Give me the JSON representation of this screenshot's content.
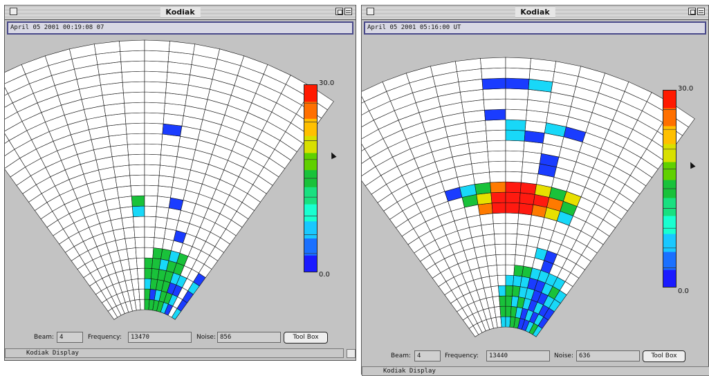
{
  "windows": [
    {
      "title": "Kodiak",
      "timestamp": "April 05 2001  00:19:08 07",
      "colorbar": {
        "max_label": "30.0",
        "min_label": "0.0",
        "min": 0,
        "max": 30
      },
      "fields": {
        "beam_label": "Beam:",
        "beam_value": "4",
        "frequency_label": "Frequency:",
        "frequency_value": "13470",
        "noise_label": "Noise:",
        "noise_value": "856"
      },
      "tool_box_label": "Tool Box",
      "status_text": "Kodiak  Display",
      "cells": [
        [
          17,
          0,
          "b"
        ],
        [
          17,
          1,
          "c"
        ],
        [
          17,
          2,
          "g"
        ],
        [
          16,
          0,
          "g"
        ],
        [
          16,
          1,
          "c"
        ],
        [
          16,
          2,
          "b"
        ],
        [
          16,
          3,
          "c"
        ],
        [
          16,
          4,
          "g"
        ],
        [
          15,
          0,
          "c"
        ],
        [
          15,
          1,
          "b"
        ],
        [
          15,
          2,
          "b"
        ],
        [
          15,
          3,
          "c"
        ],
        [
          15,
          4,
          "b"
        ],
        [
          13,
          0,
          "b"
        ],
        [
          13,
          1,
          "c"
        ],
        [
          13,
          2,
          "b"
        ],
        [
          13,
          3,
          "c"
        ],
        [
          12,
          0,
          "c"
        ],
        [
          12,
          1,
          "g"
        ],
        [
          12,
          2,
          "b"
        ],
        [
          12,
          3,
          "c"
        ],
        [
          12,
          4,
          "g"
        ],
        [
          12,
          5,
          "g"
        ],
        [
          11,
          0,
          "g"
        ],
        [
          11,
          1,
          "g"
        ],
        [
          11,
          2,
          "g"
        ],
        [
          11,
          3,
          "g"
        ],
        [
          11,
          4,
          "g"
        ],
        [
          11,
          5,
          "c"
        ],
        [
          10,
          0,
          "g"
        ],
        [
          10,
          1,
          "c"
        ],
        [
          10,
          2,
          "g"
        ],
        [
          10,
          3,
          "g"
        ],
        [
          10,
          4,
          "c"
        ],
        [
          10,
          5,
          "g"
        ],
        [
          9,
          0,
          "g"
        ],
        [
          9,
          1,
          "b"
        ],
        [
          9,
          2,
          "g"
        ],
        [
          9,
          3,
          "g"
        ],
        [
          9,
          4,
          "g"
        ],
        [
          9,
          5,
          "g"
        ],
        [
          8,
          0,
          "g"
        ],
        [
          8,
          1,
          "g"
        ],
        [
          8,
          2,
          "c"
        ],
        [
          8,
          3,
          "g"
        ],
        [
          8,
          4,
          "g"
        ],
        [
          11,
          7,
          "b"
        ],
        [
          10,
          10,
          "b"
        ],
        [
          7,
          9,
          "c"
        ],
        [
          7,
          10,
          "g"
        ],
        [
          9,
          17,
          "b"
        ]
      ]
    },
    {
      "title": "Kodiak",
      "timestamp": "April 05 2001  05:16:00 UT",
      "colorbar": {
        "max_label": "30.0",
        "min_label": "0.0",
        "min": 0,
        "max": 30
      },
      "fields": {
        "beam_label": "Beam:",
        "beam_value": "4",
        "frequency_label": "Frequency:",
        "frequency_value": "13440",
        "noise_label": "Noise:",
        "noise_value": "636"
      },
      "tool_box_label": "Tool Box",
      "status_text": "Kodiak  Display",
      "cells": [
        [
          15,
          0,
          "c"
        ],
        [
          15,
          1,
          "b"
        ],
        [
          15,
          2,
          "b"
        ],
        [
          15,
          3,
          "c"
        ],
        [
          15,
          4,
          "c"
        ],
        [
          14,
          0,
          "g"
        ],
        [
          14,
          1,
          "c"
        ],
        [
          14,
          2,
          "b"
        ],
        [
          14,
          3,
          "c"
        ],
        [
          14,
          4,
          "g"
        ],
        [
          14,
          5,
          "c"
        ],
        [
          13,
          0,
          "c"
        ],
        [
          13,
          1,
          "b"
        ],
        [
          13,
          2,
          "c"
        ],
        [
          13,
          3,
          "b"
        ],
        [
          13,
          4,
          "c"
        ],
        [
          13,
          5,
          "c"
        ],
        [
          12,
          0,
          "b"
        ],
        [
          12,
          1,
          "c"
        ],
        [
          12,
          2,
          "b"
        ],
        [
          12,
          3,
          "b"
        ],
        [
          12,
          4,
          "b"
        ],
        [
          12,
          5,
          "c"
        ],
        [
          12,
          6,
          "b"
        ],
        [
          11,
          0,
          "b"
        ],
        [
          11,
          1,
          "b"
        ],
        [
          11,
          2,
          "c"
        ],
        [
          11,
          3,
          "c"
        ],
        [
          11,
          4,
          "b"
        ],
        [
          11,
          5,
          "c"
        ],
        [
          10,
          0,
          "g"
        ],
        [
          10,
          1,
          "c"
        ],
        [
          10,
          2,
          "g"
        ],
        [
          10,
          3,
          "c"
        ],
        [
          10,
          4,
          "c"
        ],
        [
          10,
          5,
          "g"
        ],
        [
          9,
          0,
          "g"
        ],
        [
          9,
          1,
          "g"
        ],
        [
          9,
          2,
          "c"
        ],
        [
          9,
          3,
          "g"
        ],
        [
          9,
          4,
          "c"
        ],
        [
          9,
          5,
          "g"
        ],
        [
          8,
          0,
          "c"
        ],
        [
          8,
          1,
          "g"
        ],
        [
          8,
          2,
          "g"
        ],
        [
          8,
          3,
          "g"
        ],
        [
          8,
          4,
          "c"
        ],
        [
          7,
          0,
          "c"
        ],
        [
          7,
          1,
          "g"
        ],
        [
          7,
          2,
          "g"
        ],
        [
          7,
          3,
          "c"
        ],
        [
          12,
          7,
          "b"
        ],
        [
          11,
          7,
          "c"
        ],
        [
          12,
          11,
          "c"
        ],
        [
          11,
          11,
          "y"
        ],
        [
          10,
          11,
          "o"
        ],
        [
          9,
          11,
          "r"
        ],
        [
          8,
          11,
          "r"
        ],
        [
          7,
          11,
          "r"
        ],
        [
          6,
          11,
          "o"
        ],
        [
          12,
          12,
          "g"
        ],
        [
          11,
          12,
          "o"
        ],
        [
          10,
          12,
          "r"
        ],
        [
          9,
          12,
          "r"
        ],
        [
          8,
          12,
          "r"
        ],
        [
          7,
          12,
          "r"
        ],
        [
          6,
          12,
          "y"
        ],
        [
          5,
          12,
          "g"
        ],
        [
          12,
          13,
          "y"
        ],
        [
          11,
          13,
          "g"
        ],
        [
          10,
          13,
          "y"
        ],
        [
          9,
          13,
          "r"
        ],
        [
          8,
          13,
          "r"
        ],
        [
          7,
          13,
          "o"
        ],
        [
          6,
          13,
          "g"
        ],
        [
          5,
          13,
          "c"
        ],
        [
          4,
          13,
          "b"
        ],
        [
          10,
          15,
          "b"
        ],
        [
          10,
          16,
          "b"
        ],
        [
          9,
          18,
          "b"
        ],
        [
          8,
          18,
          "c"
        ],
        [
          11,
          19,
          "b"
        ],
        [
          10,
          19,
          "c"
        ],
        [
          8,
          19,
          "c"
        ],
        [
          7,
          20,
          "b"
        ],
        [
          7,
          23,
          "b"
        ],
        [
          8,
          23,
          "b"
        ],
        [
          9,
          23,
          "c"
        ]
      ]
    }
  ],
  "colors": {
    "b": "#1a3cff",
    "c": "#18d8f8",
    "g": "#19c23a",
    "y": "#e8e000",
    "o": "#ff7a00",
    "r": "#ff1a10",
    "window_bg": "#c3c3c3",
    "grid_line": "#111111"
  },
  "icons": [
    "close-box-icon",
    "zoom-box-icon",
    "collapse-box-icon",
    "arrow-cursor-icon"
  ]
}
